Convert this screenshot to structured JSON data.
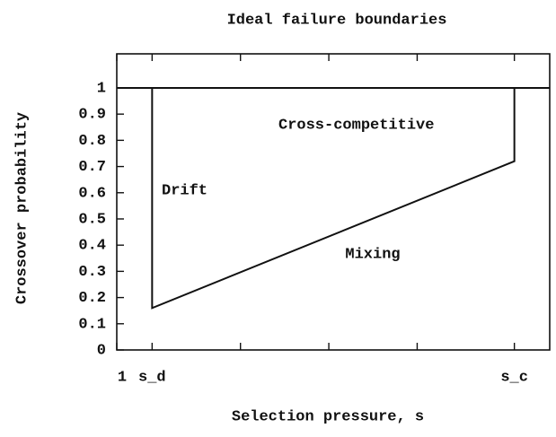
{
  "chart_data": {
    "type": "line",
    "title": "Ideal failure boundaries",
    "xlabel": "Selection pressure, s",
    "ylabel": "Crossover probability",
    "annotations": [
      "Drift",
      "Cross-competitive",
      "Mixing"
    ],
    "series": [
      {
        "color": "#111111",
        "x": [
          1.4,
          1.4,
          5.5,
          5.5
        ],
        "values": [
          1,
          0.16,
          0.72,
          1
        ]
      },
      {
        "color": "#111111",
        "x": [
          1,
          5.9
        ],
        "values": [
          1,
          1
        ]
      }
    ],
    "xlim": [
      1,
      5.9
    ],
    "ylim": [
      0,
      1.13
    ],
    "xticks": [
      1,
      {
        "value": 1.4,
        "label": "s_d"
      },
      {
        "value": 5.5,
        "label": "s_c"
      }
    ],
    "xminorticks": [
      2.4,
      3.4,
      4.4
    ],
    "yticks": [
      0,
      0.1,
      0.2,
      0.3,
      0.4,
      0.5,
      0.6,
      0.7,
      0.8,
      0.9,
      1
    ]
  }
}
